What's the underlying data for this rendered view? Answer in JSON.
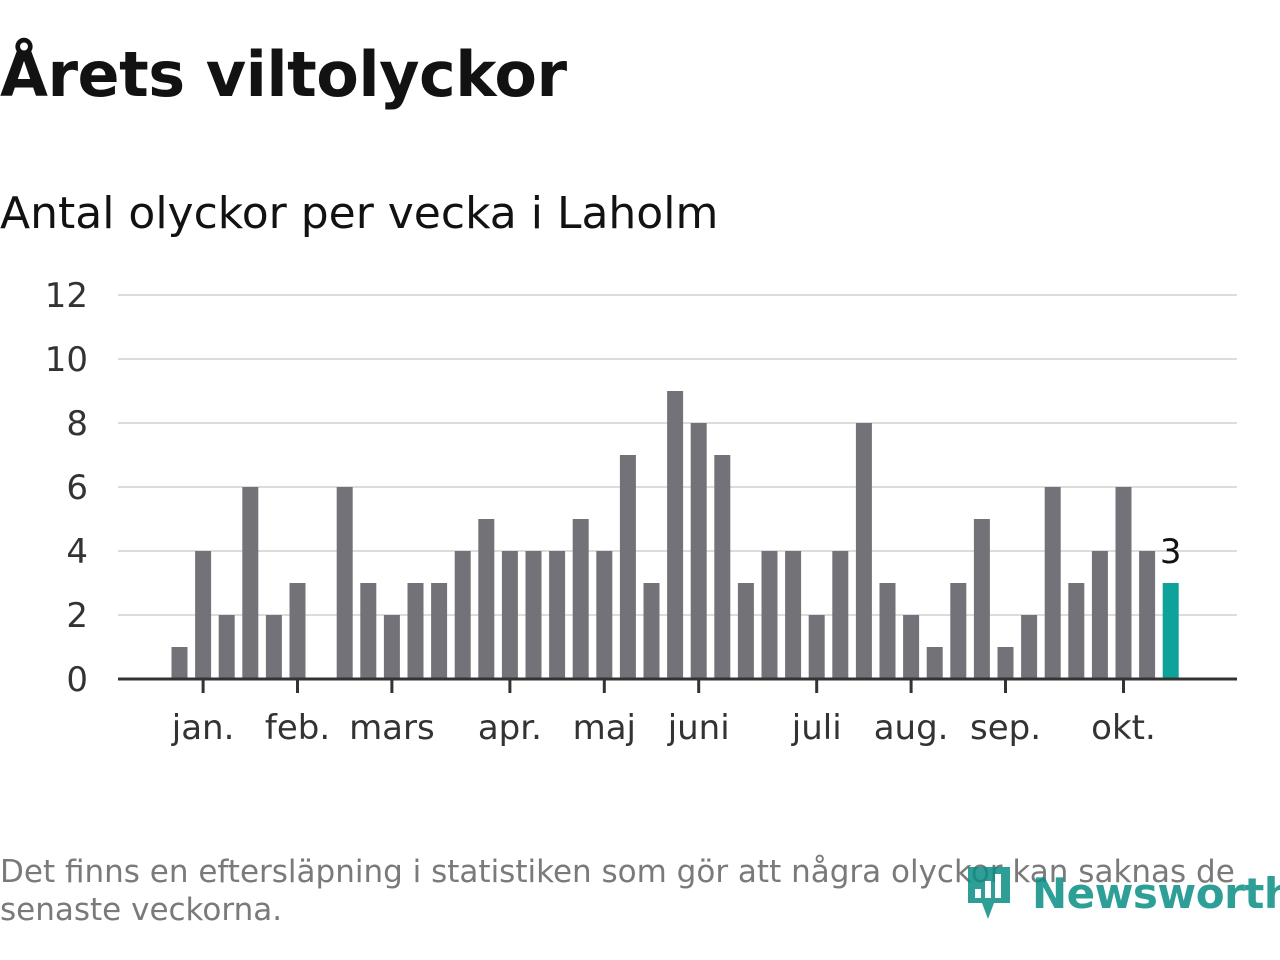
{
  "title": "Årets viltolyckor",
  "subtitle": "Antal olyckor per vecka i Laholm",
  "footnote": "Det finns en eftersläpning i statistiken som gör att några olyckor kan saknas de senaste veckorna.",
  "brand": {
    "name": "Newsworthy",
    "icon": "newsworthy-logo-icon",
    "color": "#0a8f84"
  },
  "chart_data": {
    "type": "bar",
    "ylim": [
      0,
      12
    ],
    "yticks": [
      0,
      2,
      4,
      6,
      8,
      10,
      12
    ],
    "grid": true,
    "months": [
      {
        "label": "jan.",
        "week": 2
      },
      {
        "label": "feb.",
        "week": 6
      },
      {
        "label": "mars",
        "week": 10
      },
      {
        "label": "apr.",
        "week": 15
      },
      {
        "label": "maj",
        "week": 19
      },
      {
        "label": "juni",
        "week": 23
      },
      {
        "label": "juli",
        "week": 28
      },
      {
        "label": "aug.",
        "week": 32
      },
      {
        "label": "sep.",
        "week": 36
      },
      {
        "label": "okt.",
        "week": 41
      }
    ],
    "values": [
      1,
      4,
      2,
      6,
      2,
      3,
      0,
      6,
      3,
      2,
      3,
      3,
      4,
      5,
      4,
      4,
      4,
      5,
      4,
      7,
      3,
      9,
      8,
      7,
      3,
      4,
      4,
      2,
      4,
      8,
      3,
      2,
      1,
      3,
      5,
      1,
      2,
      6,
      3,
      4,
      6,
      4,
      3
    ],
    "bar_color": "#737278",
    "highlight_color": "#0da39a",
    "last_label": "3"
  }
}
